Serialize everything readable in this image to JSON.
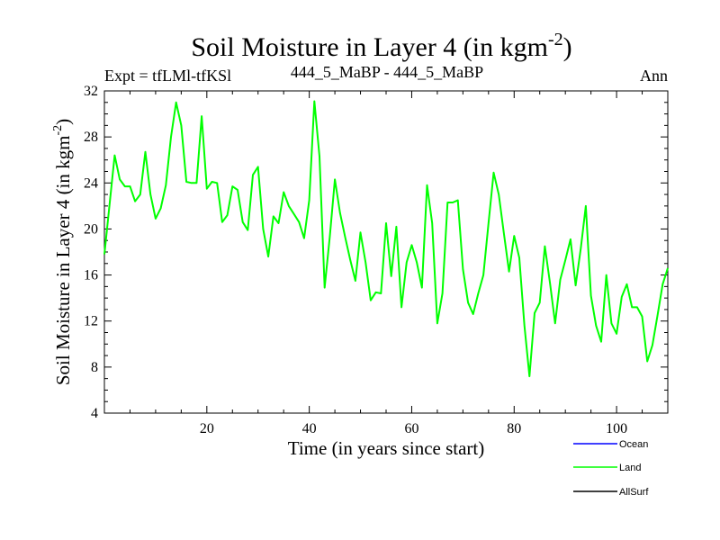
{
  "chart_data": {
    "type": "line",
    "title": "Soil Moisture in Layer 4 (in kgm",
    "title_sup": "-2",
    "title_close": ")",
    "subtitle_left": "Expt = tfLMl-tfKSl",
    "subtitle_center": "444_5_MaBP - 444_5_MaBP",
    "subtitle_right": "Ann",
    "xlabel": "Time (in years since start)",
    "ylabel": "Soil Moisture in Layer 4 (in kgm",
    "ylabel_sup": "-2",
    "ylabel_close": ")",
    "xlim": [
      0,
      110
    ],
    "ylim": [
      4,
      32
    ],
    "x_ticks": [
      20,
      40,
      60,
      80,
      100
    ],
    "x_tick_labels": [
      "20",
      "40",
      "60",
      "80",
      "100"
    ],
    "y_ticks": [
      4,
      8,
      12,
      16,
      20,
      24,
      28,
      32
    ],
    "y_tick_labels": [
      "4",
      "8",
      "12",
      "16",
      "20",
      "24",
      "28",
      "32"
    ],
    "grid": false,
    "legend_position": "bottom-right",
    "series": [
      {
        "name": "Ocean",
        "color": "#0000ff",
        "values": []
      },
      {
        "name": "Land",
        "color": "#00ff00",
        "x": [
          0,
          1,
          2,
          3,
          4,
          5,
          6,
          7,
          8,
          9,
          10,
          11,
          12,
          13,
          14,
          15,
          16,
          17,
          18,
          19,
          20,
          21,
          22,
          23,
          24,
          25,
          26,
          27,
          28,
          29,
          30,
          31,
          32,
          33,
          34,
          35,
          36,
          37,
          38,
          39,
          40,
          41,
          42,
          43,
          44,
          45,
          46,
          47,
          48,
          49,
          50,
          51,
          52,
          53,
          54,
          55,
          56,
          57,
          58,
          59,
          60,
          61,
          62,
          63,
          64,
          65,
          66,
          67,
          68,
          69,
          70,
          71,
          72,
          73,
          74,
          75,
          76,
          77,
          78,
          79,
          80,
          81,
          82,
          83,
          84,
          85,
          86,
          87,
          88,
          89,
          90,
          91,
          92,
          93,
          94,
          95,
          96,
          97,
          98,
          99,
          100,
          101,
          102,
          103,
          104,
          105,
          106,
          107,
          108,
          109,
          110
        ],
        "values": [
          17.8,
          22.1,
          26.4,
          24.3,
          23.7,
          23.7,
          22.4,
          23.0,
          26.7,
          23.0,
          20.9,
          21.8,
          23.8,
          28.0,
          31.0,
          29.0,
          24.1,
          24.0,
          24.0,
          29.8,
          23.5,
          24.1,
          24.0,
          20.6,
          21.2,
          23.7,
          23.4,
          20.6,
          19.9,
          24.7,
          25.4,
          20.0,
          17.6,
          21.1,
          20.5,
          23.2,
          22.0,
          21.3,
          20.6,
          19.2,
          22.5,
          31.1,
          26.3,
          14.9,
          19.3,
          24.3,
          21.4,
          19.3,
          17.3,
          15.5,
          19.7,
          17.1,
          13.8,
          14.5,
          14.4,
          20.5,
          15.9,
          20.2,
          13.2,
          17.1,
          18.6,
          17.1,
          14.9,
          23.8,
          20.5,
          11.8,
          14.4,
          22.3,
          22.3,
          22.5,
          16.5,
          13.6,
          12.6,
          14.4,
          16.0,
          20.5,
          24.9,
          23.0,
          19.6,
          16.3,
          19.4,
          17.5,
          11.6,
          7.2,
          12.7,
          13.6,
          18.5,
          15.3,
          11.8,
          15.6,
          17.3,
          19.1,
          15.1,
          18.3,
          22.0,
          14.2,
          11.6,
          10.2,
          16.0,
          11.8,
          10.9,
          14.1,
          15.2,
          13.2,
          13.2,
          12.4,
          8.5,
          9.9,
          12.5,
          15.2,
          16.6
        ]
      },
      {
        "name": "AllSurf",
        "color": "#000000",
        "values": []
      }
    ]
  }
}
